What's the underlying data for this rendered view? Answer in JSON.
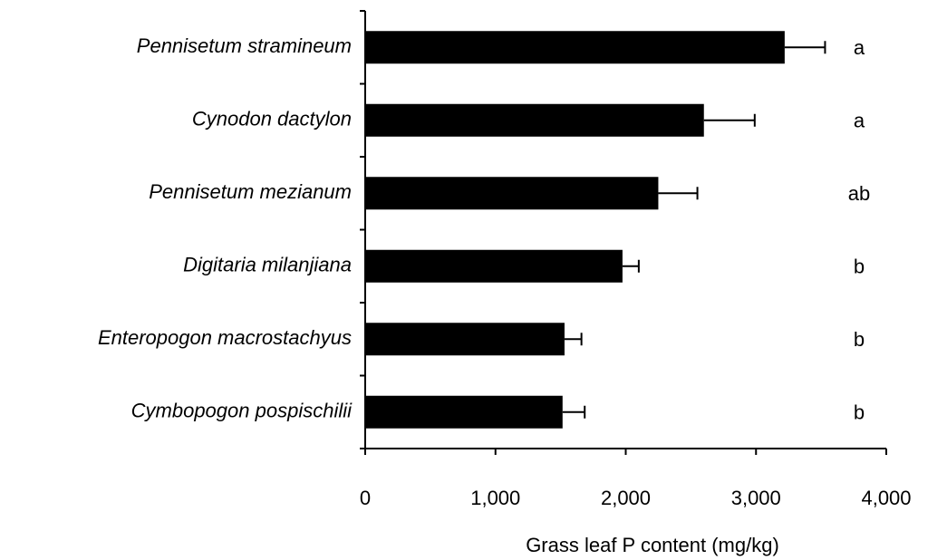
{
  "chart_data": {
    "type": "bar",
    "orientation": "horizontal",
    "categories": [
      "Pennisetum stramineum",
      "Cynodon dactylon",
      "Pennisetum mezianum",
      "Digitaria milanjiana",
      "Enteropogon macrostachyus",
      "Cymbopogon pospischilii"
    ],
    "values": [
      3220,
      2600,
      2250,
      1975,
      1530,
      1515
    ],
    "errors": [
      310,
      390,
      300,
      125,
      130,
      170
    ],
    "letters": [
      "a",
      "a",
      "ab",
      "b",
      "b",
      "b"
    ],
    "color": "#000000",
    "xlabel": "Grass leaf P content (mg/kg)",
    "xlim": [
      0,
      4000
    ],
    "xticks": [
      0,
      {
        "value": 1000,
        "label": "1,000"
      },
      {
        "value": 2000,
        "label": "2,000"
      },
      {
        "value": 3000,
        "label": "3,000"
      },
      {
        "value": 4000,
        "label": "4,000"
      }
    ]
  }
}
